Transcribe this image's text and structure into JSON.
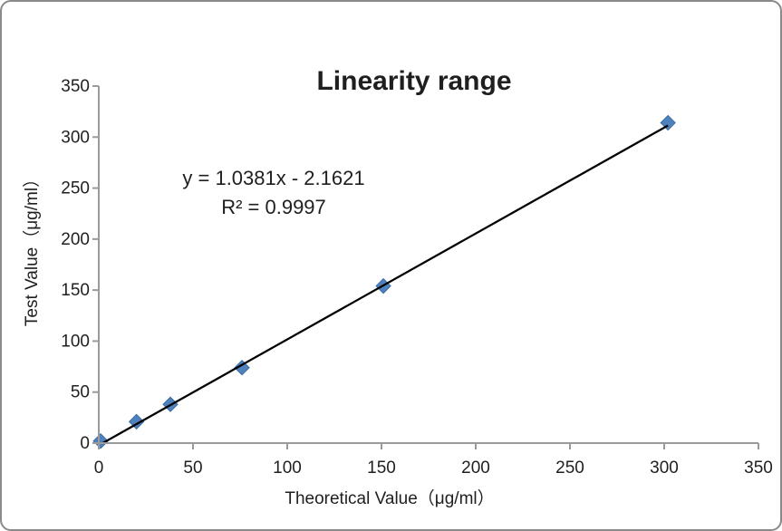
{
  "window": {
    "background": "#ffffff",
    "border_color": "#8a8a8a"
  },
  "chart_data": {
    "type": "scatter",
    "title": "Linearity range",
    "xlabel": "Theoretical Value（μg/ml）",
    "ylabel": "Test Value（μg/ml）",
    "xlim": [
      0,
      350
    ],
    "ylim": [
      0,
      350
    ],
    "xticks": [
      0,
      50,
      100,
      150,
      200,
      250,
      300,
      350
    ],
    "yticks": [
      0,
      50,
      100,
      150,
      200,
      250,
      300,
      350
    ],
    "grid": false,
    "legend": "none",
    "axis_color": "#9a9a9a",
    "series": [
      {
        "name": "Test Value",
        "marker": "diamond",
        "marker_color": "#4f81bd",
        "marker_edge_color": "#3a6da3",
        "points": [
          {
            "x": 1,
            "y": 2
          },
          {
            "x": 20,
            "y": 21
          },
          {
            "x": 38,
            "y": 38
          },
          {
            "x": 76,
            "y": 74
          },
          {
            "x": 151,
            "y": 154
          },
          {
            "x": 302,
            "y": 314
          }
        ]
      }
    ],
    "trendline": {
      "type": "linear",
      "slope": 1.0381,
      "intercept": -2.1621,
      "color": "#000000",
      "x_end": 302,
      "equation_text": "y = 1.0381x - 2.1621",
      "r_squared_text": "R² = 0.9997"
    }
  }
}
